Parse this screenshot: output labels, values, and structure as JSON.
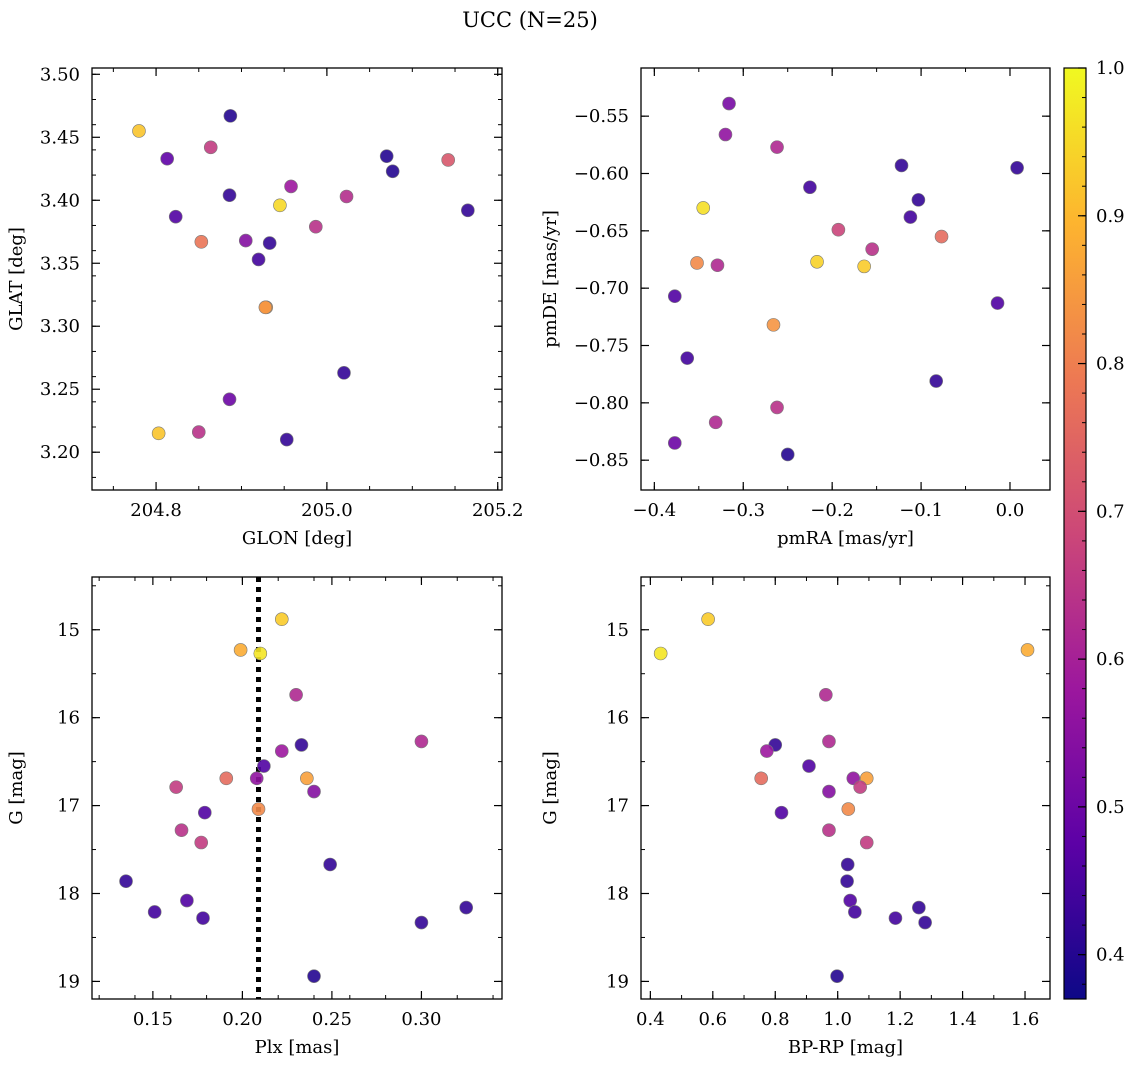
{
  "figure_title": "UCC (N=25)",
  "colorbar": {
    "range": [
      0.37,
      1.0
    ],
    "ticks": [
      "0.4",
      "0.5",
      "0.6",
      "0.7",
      "0.8",
      "0.9",
      "1.0"
    ],
    "tick_values": [
      0.4,
      0.5,
      0.6,
      0.7,
      0.8,
      0.9,
      1.0
    ],
    "colormap": "plasma"
  },
  "colormap_stops": [
    "#0d0887",
    "#5c01a6",
    "#9c179e",
    "#cc4778",
    "#ed7953",
    "#fdb42f",
    "#f0f921"
  ],
  "chart_data": [
    {
      "type": "scatter",
      "title": "",
      "xlabel": "GLON [deg]",
      "ylabel": "GLAT [deg]",
      "xlim": [
        204.725,
        205.205
      ],
      "ylim": [
        3.17,
        3.505
      ],
      "invert_y": false,
      "x_ticks": [
        204.8,
        205.0,
        205.2
      ],
      "x_tick_labels": [
        "204.8",
        "205.0",
        "205.2"
      ],
      "y_ticks": [
        3.2,
        3.25,
        3.3,
        3.35,
        3.4,
        3.45,
        3.5
      ],
      "y_tick_labels": [
        "3.20",
        "3.25",
        "3.30",
        "3.35",
        "3.40",
        "3.45",
        "3.50"
      ],
      "points": [
        {
          "x": 204.78,
          "y": 3.455,
          "c": 0.92
        },
        {
          "x": 204.887,
          "y": 3.467,
          "c": 0.4
        },
        {
          "x": 204.813,
          "y": 3.433,
          "c": 0.48
        },
        {
          "x": 204.864,
          "y": 3.442,
          "c": 0.66
        },
        {
          "x": 204.886,
          "y": 3.404,
          "c": 0.42
        },
        {
          "x": 204.958,
          "y": 3.411,
          "c": 0.58
        },
        {
          "x": 204.945,
          "y": 3.396,
          "c": 0.95
        },
        {
          "x": 205.07,
          "y": 3.435,
          "c": 0.4
        },
        {
          "x": 205.077,
          "y": 3.423,
          "c": 0.4
        },
        {
          "x": 205.142,
          "y": 3.432,
          "c": 0.72
        },
        {
          "x": 205.165,
          "y": 3.392,
          "c": 0.42
        },
        {
          "x": 204.823,
          "y": 3.387,
          "c": 0.46
        },
        {
          "x": 205.023,
          "y": 3.403,
          "c": 0.63
        },
        {
          "x": 204.987,
          "y": 3.379,
          "c": 0.64
        },
        {
          "x": 204.853,
          "y": 3.367,
          "c": 0.78
        },
        {
          "x": 204.905,
          "y": 3.368,
          "c": 0.54
        },
        {
          "x": 204.933,
          "y": 3.366,
          "c": 0.42
        },
        {
          "x": 204.92,
          "y": 3.353,
          "c": 0.44
        },
        {
          "x": 204.929,
          "y": 3.315,
          "c": 0.86
        },
        {
          "x": 205.02,
          "y": 3.263,
          "c": 0.42
        },
        {
          "x": 204.886,
          "y": 3.242,
          "c": 0.5
        },
        {
          "x": 204.803,
          "y": 3.215,
          "c": 0.92
        },
        {
          "x": 204.85,
          "y": 3.216,
          "c": 0.64
        },
        {
          "x": 204.953,
          "y": 3.21,
          "c": 0.42
        },
        {
          "x": 204.928,
          "y": 3.315,
          "c": 0.84
        }
      ]
    },
    {
      "type": "scatter",
      "title": "",
      "xlabel": "pmRA [mas/yr]",
      "ylabel": "pmDE [mas/yr]",
      "xlim": [
        -0.415,
        0.045
      ],
      "ylim": [
        -0.876,
        -0.508
      ],
      "invert_y": false,
      "x_ticks": [
        -0.4,
        -0.3,
        -0.2,
        -0.1,
        0.0
      ],
      "x_tick_labels": [
        "−0.4",
        "−0.3",
        "−0.2",
        "−0.1",
        "0.0"
      ],
      "y_ticks": [
        -0.85,
        -0.8,
        -0.75,
        -0.7,
        -0.65,
        -0.6,
        -0.55
      ],
      "y_tick_labels": [
        "−0.85",
        "−0.80",
        "−0.75",
        "−0.70",
        "−0.65",
        "−0.60",
        "−0.55"
      ],
      "points": [
        {
          "x": -0.316,
          "y": -0.539,
          "c": 0.52
        },
        {
          "x": -0.32,
          "y": -0.566,
          "c": 0.56
        },
        {
          "x": -0.262,
          "y": -0.577,
          "c": 0.62
        },
        {
          "x": -0.122,
          "y": -0.593,
          "c": 0.42
        },
        {
          "x": 0.008,
          "y": -0.595,
          "c": 0.42
        },
        {
          "x": -0.225,
          "y": -0.612,
          "c": 0.44
        },
        {
          "x": -0.103,
          "y": -0.623,
          "c": 0.42
        },
        {
          "x": -0.112,
          "y": -0.638,
          "c": 0.44
        },
        {
          "x": -0.345,
          "y": -0.63,
          "c": 0.96
        },
        {
          "x": -0.193,
          "y": -0.649,
          "c": 0.68
        },
        {
          "x": -0.155,
          "y": -0.666,
          "c": 0.64
        },
        {
          "x": -0.077,
          "y": -0.655,
          "c": 0.76
        },
        {
          "x": -0.352,
          "y": -0.678,
          "c": 0.82
        },
        {
          "x": -0.329,
          "y": -0.68,
          "c": 0.62
        },
        {
          "x": -0.217,
          "y": -0.677,
          "c": 0.94
        },
        {
          "x": -0.164,
          "y": -0.681,
          "c": 0.93
        },
        {
          "x": -0.377,
          "y": -0.707,
          "c": 0.46
        },
        {
          "x": -0.014,
          "y": -0.713,
          "c": 0.46
        },
        {
          "x": -0.266,
          "y": -0.732,
          "c": 0.84
        },
        {
          "x": -0.363,
          "y": -0.761,
          "c": 0.44
        },
        {
          "x": -0.083,
          "y": -0.781,
          "c": 0.42
        },
        {
          "x": -0.262,
          "y": -0.804,
          "c": 0.64
        },
        {
          "x": -0.331,
          "y": -0.817,
          "c": 0.62
        },
        {
          "x": -0.377,
          "y": -0.835,
          "c": 0.5
        },
        {
          "x": -0.25,
          "y": -0.845,
          "c": 0.4
        }
      ]
    },
    {
      "type": "scatter",
      "title": "",
      "xlabel": "Plx [mas]",
      "ylabel": "G [mag]",
      "xlim": [
        0.116,
        0.345
      ],
      "ylim": [
        14.4,
        19.2
      ],
      "invert_y": true,
      "vline": {
        "x": 0.209,
        "style": "dotted"
      },
      "x_ticks": [
        0.15,
        0.2,
        0.25,
        0.3
      ],
      "x_tick_labels": [
        "0.15",
        "0.20",
        "0.25",
        "0.30"
      ],
      "y_ticks": [
        15,
        16,
        17,
        18,
        19
      ],
      "y_tick_labels": [
        "15",
        "16",
        "17",
        "18",
        "19"
      ],
      "points": [
        {
          "x": 0.222,
          "y": 14.88,
          "c": 0.93
        },
        {
          "x": 0.199,
          "y": 15.23,
          "c": 0.88
        },
        {
          "x": 0.21,
          "y": 15.27,
          "c": 0.97
        },
        {
          "x": 0.23,
          "y": 15.74,
          "c": 0.62
        },
        {
          "x": 0.3,
          "y": 16.27,
          "c": 0.62
        },
        {
          "x": 0.233,
          "y": 16.31,
          "c": 0.42
        },
        {
          "x": 0.222,
          "y": 16.38,
          "c": 0.58
        },
        {
          "x": 0.212,
          "y": 16.55,
          "c": 0.46
        },
        {
          "x": 0.191,
          "y": 16.69,
          "c": 0.76
        },
        {
          "x": 0.208,
          "y": 16.69,
          "c": 0.56
        },
        {
          "x": 0.236,
          "y": 16.69,
          "c": 0.86
        },
        {
          "x": 0.24,
          "y": 16.84,
          "c": 0.54
        },
        {
          "x": 0.163,
          "y": 16.79,
          "c": 0.66
        },
        {
          "x": 0.209,
          "y": 17.04,
          "c": 0.82
        },
        {
          "x": 0.179,
          "y": 17.08,
          "c": 0.46
        },
        {
          "x": 0.166,
          "y": 17.28,
          "c": 0.64
        },
        {
          "x": 0.177,
          "y": 17.42,
          "c": 0.66
        },
        {
          "x": 0.249,
          "y": 17.67,
          "c": 0.42
        },
        {
          "x": 0.135,
          "y": 17.86,
          "c": 0.42
        },
        {
          "x": 0.169,
          "y": 18.08,
          "c": 0.46
        },
        {
          "x": 0.325,
          "y": 18.16,
          "c": 0.42
        },
        {
          "x": 0.151,
          "y": 18.21,
          "c": 0.44
        },
        {
          "x": 0.178,
          "y": 18.28,
          "c": 0.44
        },
        {
          "x": 0.3,
          "y": 18.33,
          "c": 0.42
        },
        {
          "x": 0.24,
          "y": 18.94,
          "c": 0.4
        }
      ]
    },
    {
      "type": "scatter",
      "title": "",
      "xlabel": "BP-RP [mag]",
      "ylabel": "G [mag]",
      "xlim": [
        0.37,
        1.68
      ],
      "ylim": [
        14.4,
        19.2
      ],
      "invert_y": true,
      "x_ticks": [
        0.4,
        0.6,
        0.8,
        1.0,
        1.2,
        1.4,
        1.6
      ],
      "x_tick_labels": [
        "0.4",
        "0.6",
        "0.8",
        "1.0",
        "1.2",
        "1.4",
        "1.6"
      ],
      "y_ticks": [
        15,
        16,
        17,
        18,
        19
      ],
      "y_tick_labels": [
        "15",
        "16",
        "17",
        "18",
        "19"
      ],
      "points": [
        {
          "x": 0.585,
          "y": 14.88,
          "c": 0.93
        },
        {
          "x": 0.433,
          "y": 15.27,
          "c": 0.97
        },
        {
          "x": 1.608,
          "y": 15.23,
          "c": 0.88
        },
        {
          "x": 0.962,
          "y": 15.74,
          "c": 0.62
        },
        {
          "x": 0.972,
          "y": 16.27,
          "c": 0.62
        },
        {
          "x": 0.8,
          "y": 16.31,
          "c": 0.42
        },
        {
          "x": 0.773,
          "y": 16.38,
          "c": 0.58
        },
        {
          "x": 0.908,
          "y": 16.55,
          "c": 0.46
        },
        {
          "x": 0.755,
          "y": 16.69,
          "c": 0.76
        },
        {
          "x": 1.05,
          "y": 16.69,
          "c": 0.56
        },
        {
          "x": 1.093,
          "y": 16.69,
          "c": 0.86
        },
        {
          "x": 0.972,
          "y": 16.84,
          "c": 0.54
        },
        {
          "x": 1.072,
          "y": 16.79,
          "c": 0.66
        },
        {
          "x": 1.034,
          "y": 17.04,
          "c": 0.82
        },
        {
          "x": 0.82,
          "y": 17.08,
          "c": 0.46
        },
        {
          "x": 0.972,
          "y": 17.28,
          "c": 0.64
        },
        {
          "x": 1.093,
          "y": 17.42,
          "c": 0.66
        },
        {
          "x": 1.032,
          "y": 17.67,
          "c": 0.42
        },
        {
          "x": 1.03,
          "y": 17.86,
          "c": 0.42
        },
        {
          "x": 1.04,
          "y": 18.08,
          "c": 0.46
        },
        {
          "x": 1.26,
          "y": 18.16,
          "c": 0.42
        },
        {
          "x": 1.055,
          "y": 18.21,
          "c": 0.44
        },
        {
          "x": 1.185,
          "y": 18.28,
          "c": 0.44
        },
        {
          "x": 1.28,
          "y": 18.33,
          "c": 0.42
        },
        {
          "x": 0.998,
          "y": 18.94,
          "c": 0.4
        }
      ]
    }
  ]
}
